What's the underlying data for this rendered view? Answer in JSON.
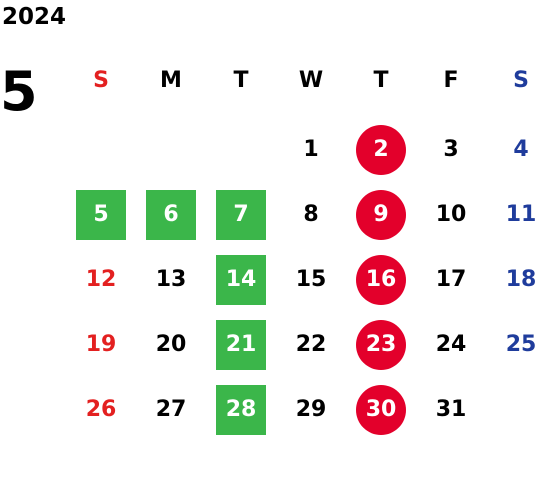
{
  "year": "2024",
  "month": "5",
  "weekdays": [
    "S",
    "M",
    "T",
    "W",
    "T",
    "F",
    "S"
  ],
  "colors": {
    "sunday": "#e32020",
    "saturday": "#1f3c9c",
    "holiday_green": "#3bb64a",
    "highlight_red": "#e3002b"
  },
  "days": [
    {
      "d": "1",
      "row": 0,
      "col": 3,
      "style": ""
    },
    {
      "d": "2",
      "row": 0,
      "col": 4,
      "style": "red"
    },
    {
      "d": "3",
      "row": 0,
      "col": 5,
      "style": ""
    },
    {
      "d": "4",
      "row": 0,
      "col": 6,
      "style": ""
    },
    {
      "d": "5",
      "row": 1,
      "col": 0,
      "style": "green"
    },
    {
      "d": "6",
      "row": 1,
      "col": 1,
      "style": "green"
    },
    {
      "d": "7",
      "row": 1,
      "col": 2,
      "style": "green"
    },
    {
      "d": "8",
      "row": 1,
      "col": 3,
      "style": ""
    },
    {
      "d": "9",
      "row": 1,
      "col": 4,
      "style": "red"
    },
    {
      "d": "10",
      "row": 1,
      "col": 5,
      "style": ""
    },
    {
      "d": "11",
      "row": 1,
      "col": 6,
      "style": ""
    },
    {
      "d": "12",
      "row": 2,
      "col": 0,
      "style": ""
    },
    {
      "d": "13",
      "row": 2,
      "col": 1,
      "style": ""
    },
    {
      "d": "14",
      "row": 2,
      "col": 2,
      "style": "green"
    },
    {
      "d": "15",
      "row": 2,
      "col": 3,
      "style": ""
    },
    {
      "d": "16",
      "row": 2,
      "col": 4,
      "style": "red"
    },
    {
      "d": "17",
      "row": 2,
      "col": 5,
      "style": ""
    },
    {
      "d": "18",
      "row": 2,
      "col": 6,
      "style": ""
    },
    {
      "d": "19",
      "row": 3,
      "col": 0,
      "style": ""
    },
    {
      "d": "20",
      "row": 3,
      "col": 1,
      "style": ""
    },
    {
      "d": "21",
      "row": 3,
      "col": 2,
      "style": "green"
    },
    {
      "d": "22",
      "row": 3,
      "col": 3,
      "style": ""
    },
    {
      "d": "23",
      "row": 3,
      "col": 4,
      "style": "red"
    },
    {
      "d": "24",
      "row": 3,
      "col": 5,
      "style": ""
    },
    {
      "d": "25",
      "row": 3,
      "col": 6,
      "style": ""
    },
    {
      "d": "26",
      "row": 4,
      "col": 0,
      "style": ""
    },
    {
      "d": "27",
      "row": 4,
      "col": 1,
      "style": ""
    },
    {
      "d": "28",
      "row": 4,
      "col": 2,
      "style": "green"
    },
    {
      "d": "29",
      "row": 4,
      "col": 3,
      "style": ""
    },
    {
      "d": "30",
      "row": 4,
      "col": 4,
      "style": "red"
    },
    {
      "d": "31",
      "row": 4,
      "col": 5,
      "style": ""
    }
  ]
}
